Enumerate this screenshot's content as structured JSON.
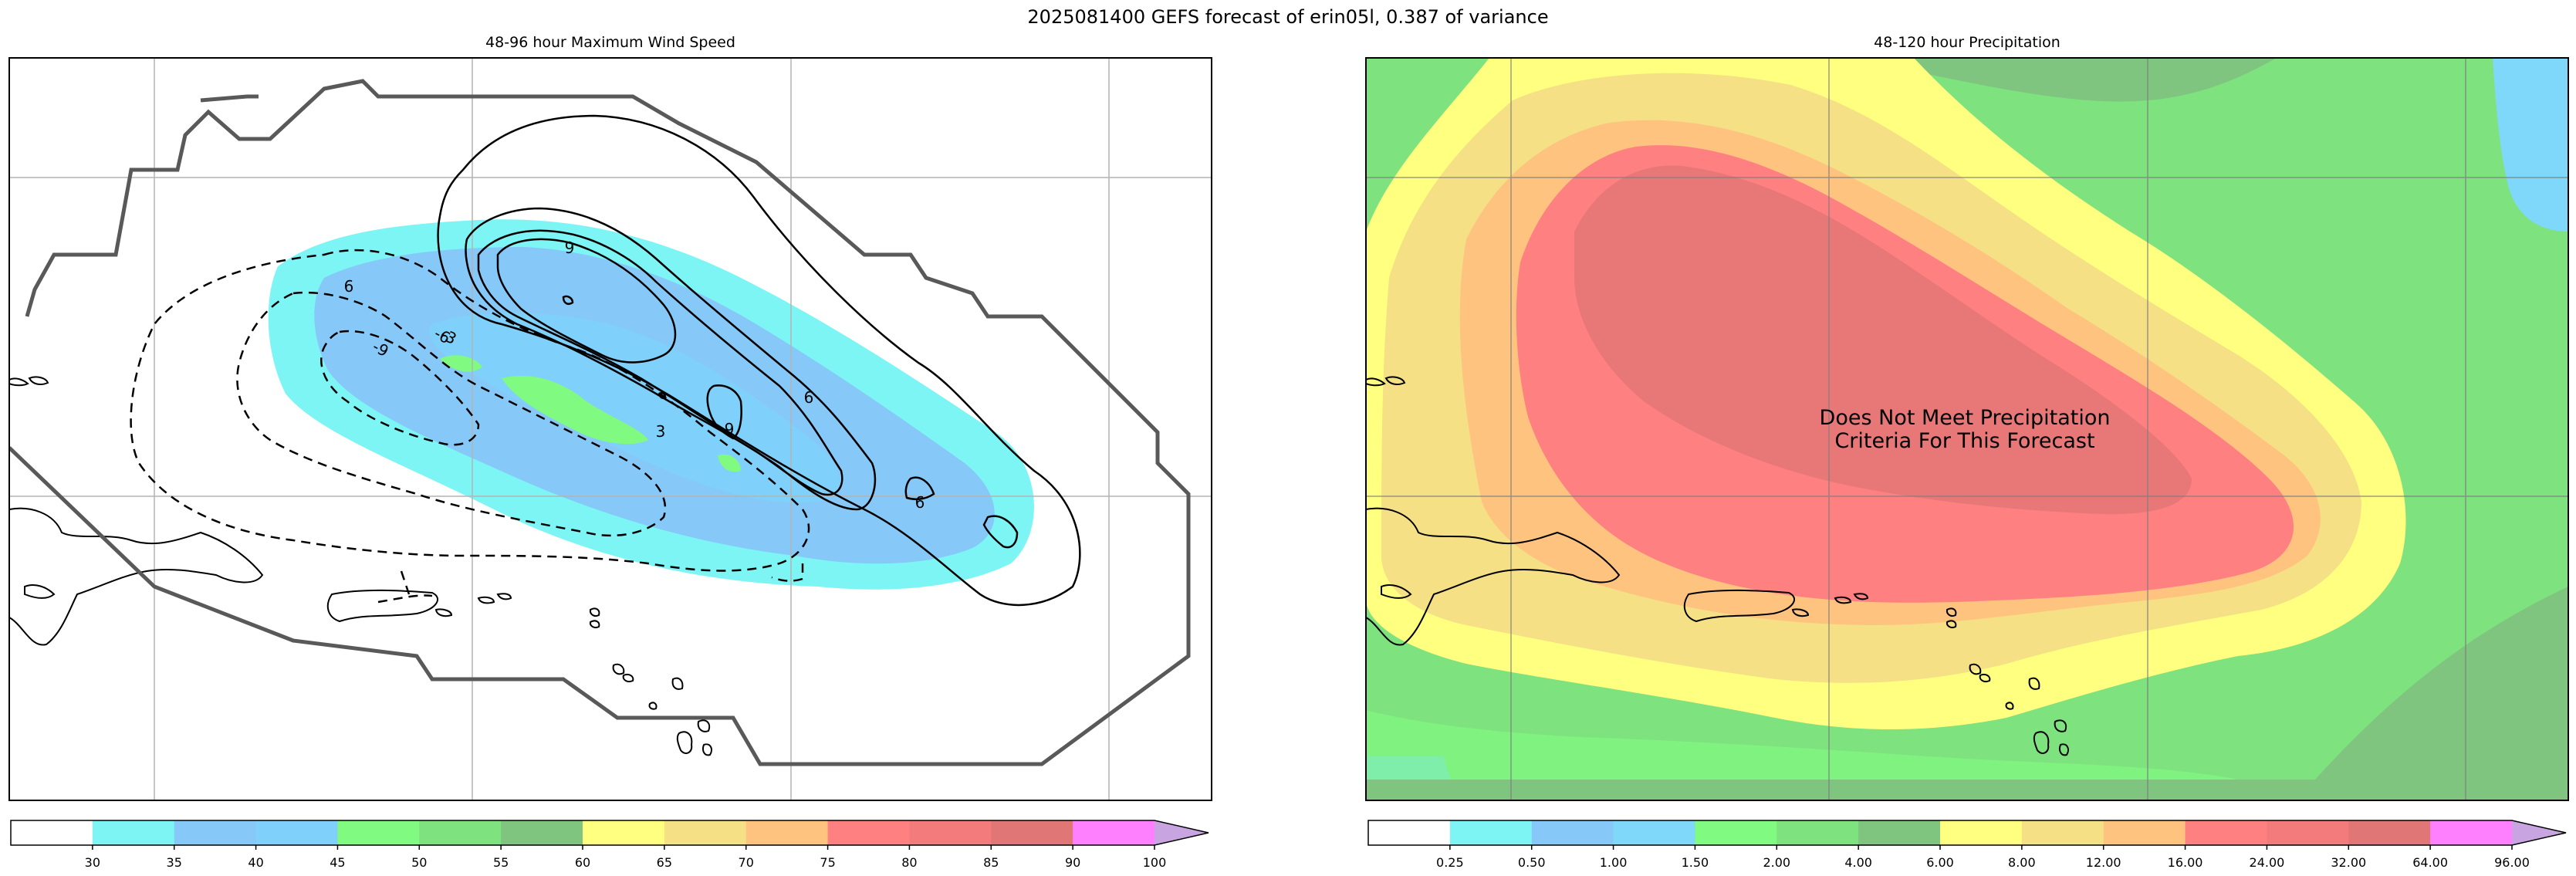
{
  "figure": {
    "title": "2025081400 GEFS forecast of erin05l, 0.387 of variance"
  },
  "panels": [
    {
      "title": "48-96 hour Maximum Wind Speed",
      "contour_labels": [
        "9",
        "6",
        "-6",
        "-9",
        "-3",
        "6",
        "3",
        "9",
        "6"
      ],
      "colorbar": {
        "ticks": [
          "30",
          "35",
          "40",
          "45",
          "50",
          "55",
          "60",
          "65",
          "70",
          "75",
          "80",
          "85",
          "90",
          "100"
        ],
        "colors": [
          "#ffffff",
          "#7ef5f5",
          "#86c9f8",
          "#7fd0fa",
          "#80fa80",
          "#7ee27e",
          "#7fc47f",
          "#ffff80",
          "#f5e085",
          "#ffc380",
          "#ff8080",
          "#f47b7b",
          "#e07676",
          "#ff80ff",
          "#c8a5e0"
        ]
      }
    },
    {
      "title": "48-120 hour Precipitation",
      "annotation": "Does Not Meet Precipitation\nCriteria For This Forecast",
      "colorbar": {
        "ticks": [
          "0.25",
          "0.50",
          "1.00",
          "1.50",
          "2.00",
          "4.00",
          "6.00",
          "8.00",
          "12.00",
          "16.00",
          "24.00",
          "32.00",
          "64.00",
          "96.00"
        ],
        "colors": [
          "#ffffff",
          "#7ef5f5",
          "#86c9f8",
          "#7fd8fa",
          "#80fa80",
          "#7ee27e",
          "#7fc47f",
          "#ffff80",
          "#f5e085",
          "#ffc380",
          "#ff8080",
          "#f47b7b",
          "#e07676",
          "#ff80ff",
          "#c8a5e0"
        ]
      }
    }
  ],
  "chart_data": [
    {
      "type": "heatmap",
      "title": "48-96 hour Maximum Wind Speed",
      "field": "maximum wind speed (filled) with sensitivity contours",
      "colorbar_levels": [
        30,
        35,
        40,
        45,
        50,
        55,
        60,
        65,
        70,
        75,
        80,
        85,
        90,
        100
      ],
      "colorbar_extend": "max",
      "contour_levels_labeled": [
        -9,
        -6,
        -3,
        3,
        6,
        9
      ],
      "grid": true
    },
    {
      "type": "heatmap",
      "title": "48-120 hour Precipitation",
      "field": "precipitation (filled)",
      "colorbar_levels": [
        0.25,
        0.5,
        1.0,
        1.5,
        2.0,
        4.0,
        6.0,
        8.0,
        12.0,
        16.0,
        24.0,
        32.0,
        64.0,
        96.0
      ],
      "colorbar_extend": "max",
      "annotation": "Does Not Meet Precipitation Criteria For This Forecast",
      "grid": true
    }
  ]
}
